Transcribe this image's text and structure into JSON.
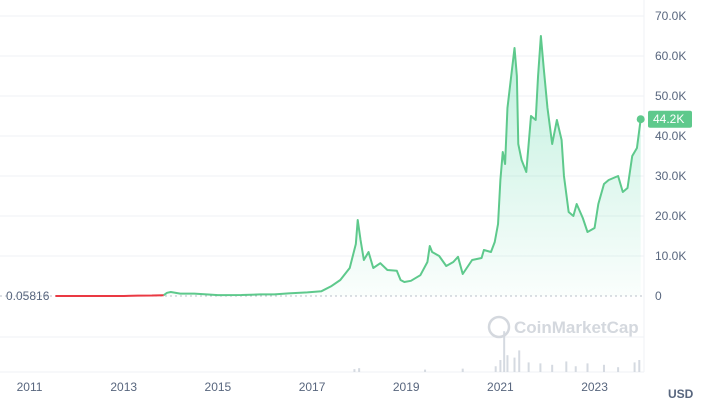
{
  "chart_data": {
    "type": "area",
    "currency_label": "USD",
    "watermark": "CoinMarketCap",
    "start_value_label": "0.05816",
    "current_value_label": "44.2K",
    "current_value": 44200,
    "ylim": [
      0,
      74000
    ],
    "xlim": [
      2010.5,
      2024.05
    ],
    "y_ticks": [
      {
        "value": 0,
        "label": "0"
      },
      {
        "value": 10000,
        "label": "10.0K"
      },
      {
        "value": 20000,
        "label": "20.0K"
      },
      {
        "value": 30000,
        "label": "30.0K"
      },
      {
        "value": 40000,
        "label": "40.0K"
      },
      {
        "value": 50000,
        "label": "50.0K"
      },
      {
        "value": 60000,
        "label": "60.0K"
      },
      {
        "value": 70000,
        "label": "70.0K"
      }
    ],
    "x_ticks": [
      {
        "value": 2011,
        "label": "2011"
      },
      {
        "value": 2013,
        "label": "2013"
      },
      {
        "value": 2015,
        "label": "2015"
      },
      {
        "value": 2017,
        "label": "2017"
      },
      {
        "value": 2019,
        "label": "2019"
      },
      {
        "value": 2021,
        "label": "2021"
      },
      {
        "value": 2023,
        "label": "2023"
      }
    ],
    "colors": {
      "up_line": "#16c784",
      "line": "#5ec98c",
      "below_start_line": "#ea3943",
      "price_tag": "#5ec98c",
      "grid": "#eff2f5",
      "zero_line": "#b8bfca"
    },
    "series": [
      {
        "points": [
          [
            2011.55,
            0.06
          ],
          [
            2012.0,
            5
          ],
          [
            2012.5,
            8
          ],
          [
            2013.0,
            13
          ],
          [
            2013.3,
            100
          ],
          [
            2013.6,
            110
          ],
          [
            2013.85,
            200
          ],
          [
            2013.92,
            800
          ],
          [
            2014.0,
            1000
          ],
          [
            2014.2,
            600
          ],
          [
            2014.5,
            580
          ],
          [
            2014.8,
            380
          ],
          [
            2015.0,
            230
          ],
          [
            2015.5,
            250
          ],
          [
            2015.9,
            400
          ],
          [
            2016.2,
            420
          ],
          [
            2016.5,
            650
          ],
          [
            2016.9,
            900
          ],
          [
            2017.2,
            1200
          ],
          [
            2017.4,
            2400
          ],
          [
            2017.6,
            4000
          ],
          [
            2017.8,
            7000
          ],
          [
            2017.93,
            13000
          ],
          [
            2017.97,
            19000
          ],
          [
            2018.03,
            14000
          ],
          [
            2018.1,
            9000
          ],
          [
            2018.2,
            11000
          ],
          [
            2018.3,
            7000
          ],
          [
            2018.45,
            8200
          ],
          [
            2018.6,
            6500
          ],
          [
            2018.8,
            6300
          ],
          [
            2018.88,
            4000
          ],
          [
            2018.96,
            3500
          ],
          [
            2019.1,
            3800
          ],
          [
            2019.3,
            5200
          ],
          [
            2019.45,
            8500
          ],
          [
            2019.5,
            12500
          ],
          [
            2019.55,
            11000
          ],
          [
            2019.7,
            10000
          ],
          [
            2019.85,
            7500
          ],
          [
            2020.0,
            8500
          ],
          [
            2020.1,
            9800
          ],
          [
            2020.2,
            5500
          ],
          [
            2020.4,
            9000
          ],
          [
            2020.6,
            9500
          ],
          [
            2020.65,
            11500
          ],
          [
            2020.8,
            11000
          ],
          [
            2020.88,
            13500
          ],
          [
            2020.95,
            18000
          ],
          [
            2021.0,
            29000
          ],
          [
            2021.05,
            36000
          ],
          [
            2021.1,
            33000
          ],
          [
            2021.15,
            47000
          ],
          [
            2021.25,
            57000
          ],
          [
            2021.3,
            62000
          ],
          [
            2021.35,
            55000
          ],
          [
            2021.38,
            38000
          ],
          [
            2021.45,
            34000
          ],
          [
            2021.55,
            31000
          ],
          [
            2021.65,
            45000
          ],
          [
            2021.75,
            44000
          ],
          [
            2021.8,
            55000
          ],
          [
            2021.86,
            65000
          ],
          [
            2021.92,
            57000
          ],
          [
            2022.0,
            47000
          ],
          [
            2022.1,
            38000
          ],
          [
            2022.2,
            44000
          ],
          [
            2022.3,
            39000
          ],
          [
            2022.35,
            30000
          ],
          [
            2022.45,
            21000
          ],
          [
            2022.55,
            20000
          ],
          [
            2022.62,
            23000
          ],
          [
            2022.75,
            19500
          ],
          [
            2022.85,
            16000
          ],
          [
            2023.0,
            17000
          ],
          [
            2023.08,
            23000
          ],
          [
            2023.2,
            28000
          ],
          [
            2023.3,
            29000
          ],
          [
            2023.5,
            30000
          ],
          [
            2023.6,
            26000
          ],
          [
            2023.7,
            27000
          ],
          [
            2023.8,
            35000
          ],
          [
            2023.9,
            37000
          ],
          [
            2023.98,
            44200
          ]
        ]
      }
    ],
    "volume": {
      "bars": [
        [
          2017.9,
          0.06
        ],
        [
          2018.0,
          0.08
        ],
        [
          2019.4,
          0.05
        ],
        [
          2020.2,
          0.07
        ],
        [
          2020.9,
          0.12
        ],
        [
          2021.0,
          0.25
        ],
        [
          2021.08,
          0.85
        ],
        [
          2021.15,
          0.35
        ],
        [
          2021.3,
          0.3
        ],
        [
          2021.4,
          0.45
        ],
        [
          2021.6,
          0.2
        ],
        [
          2021.85,
          0.18
        ],
        [
          2022.1,
          0.15
        ],
        [
          2022.4,
          0.22
        ],
        [
          2022.6,
          0.12
        ],
        [
          2022.85,
          0.18
        ],
        [
          2023.2,
          0.15
        ],
        [
          2023.5,
          0.1
        ],
        [
          2023.85,
          0.2
        ],
        [
          2023.95,
          0.25
        ]
      ]
    }
  }
}
